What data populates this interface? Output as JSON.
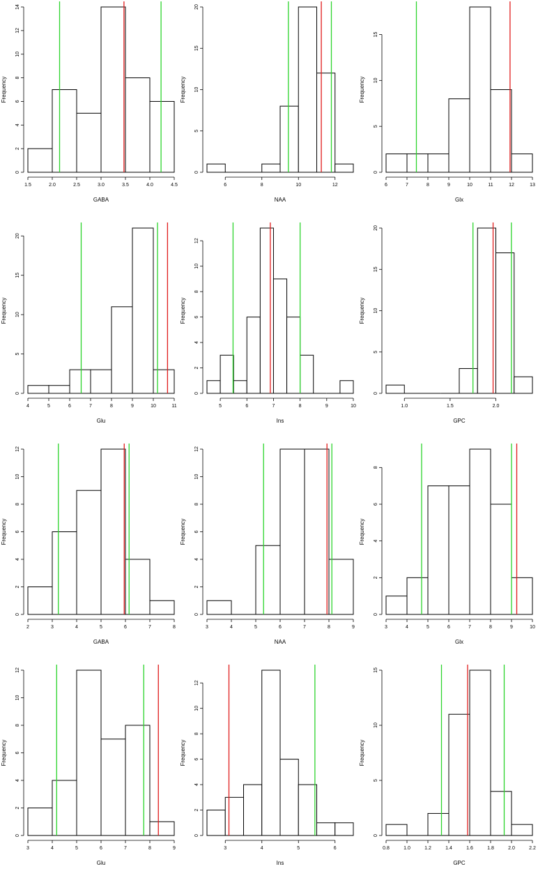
{
  "chart_data": [
    {
      "type": "bar",
      "xlabel": "GABA",
      "ylabel": "Frequency",
      "bins": [
        1.5,
        2.0,
        2.5,
        3.0,
        3.5,
        4.0,
        4.5
      ],
      "counts": [
        2,
        7,
        5,
        14,
        8,
        6
      ],
      "xticks": [
        1.5,
        2.0,
        2.5,
        3.0,
        3.5,
        4.0,
        4.5
      ],
      "xtick_labels": [
        "1.5",
        "2.0",
        "2.5",
        "3.0",
        "3.5",
        "4.0",
        "4.5"
      ],
      "yticks": [
        0,
        2,
        4,
        6,
        8,
        10,
        12,
        14
      ],
      "ylim": [
        0,
        14
      ],
      "red_lines": [
        3.47
      ],
      "green_lines": [
        2.15,
        4.23
      ]
    },
    {
      "type": "bar",
      "xlabel": "NAA",
      "ylabel": "Frequency",
      "bins": [
        5,
        6,
        7,
        8,
        9,
        10,
        11,
        12,
        13
      ],
      "counts": [
        1,
        0,
        0,
        1,
        8,
        20,
        12,
        1
      ],
      "xticks": [
        6,
        8,
        10,
        12
      ],
      "xtick_labels": [
        "6",
        "8",
        "10",
        "12"
      ],
      "yticks": [
        0,
        5,
        10,
        15,
        20
      ],
      "ylim": [
        0,
        20
      ],
      "red_lines": [
        11.25
      ],
      "green_lines": [
        9.45,
        11.8
      ]
    },
    {
      "type": "bar",
      "xlabel": "Glx",
      "ylabel": "Frequency",
      "bins": [
        6,
        7,
        8,
        9,
        10,
        11,
        12,
        13
      ],
      "counts": [
        2,
        2,
        2,
        8,
        18,
        9,
        2
      ],
      "xticks": [
        6,
        7,
        8,
        9,
        10,
        11,
        12,
        13
      ],
      "xtick_labels": [
        "6",
        "7",
        "8",
        "9",
        "10",
        "11",
        "12",
        "13"
      ],
      "yticks": [
        0,
        5,
        10,
        15
      ],
      "ylim": [
        0,
        18
      ],
      "red_lines": [
        11.93
      ],
      "green_lines": [
        7.45
      ]
    },
    {
      "type": "bar",
      "xlabel": "Glu",
      "ylabel": "Frequency",
      "bins": [
        4,
        5,
        6,
        7,
        8,
        9,
        10,
        11
      ],
      "counts": [
        1,
        1,
        3,
        3,
        11,
        21,
        3
      ],
      "xticks": [
        4,
        5,
        6,
        7,
        8,
        9,
        10,
        11
      ],
      "xtick_labels": [
        "4",
        "5",
        "6",
        "7",
        "8",
        "9",
        "10",
        "11"
      ],
      "yticks": [
        0,
        5,
        10,
        15,
        20
      ],
      "ylim": [
        0,
        21
      ],
      "red_lines": [
        10.68
      ],
      "green_lines": [
        6.55,
        10.2
      ]
    },
    {
      "type": "bar",
      "xlabel": "Ins",
      "ylabel": "Frequency",
      "bins": [
        4.5,
        5.0,
        5.5,
        6.0,
        6.5,
        7.0,
        7.5,
        8.0,
        8.5,
        9.0,
        9.5,
        10.0
      ],
      "counts": [
        1,
        3,
        1,
        6,
        13,
        9,
        6,
        3,
        0,
        0,
        1
      ],
      "xticks": [
        5,
        6,
        7,
        8,
        9,
        10
      ],
      "xtick_labels": [
        "5",
        "6",
        "7",
        "8",
        "9",
        "10"
      ],
      "yticks": [
        0,
        2,
        4,
        6,
        8,
        10,
        12
      ],
      "ylim": [
        0,
        13
      ],
      "red_lines": [
        6.88
      ],
      "green_lines": [
        5.48,
        8.0
      ]
    },
    {
      "type": "bar",
      "xlabel": "GPC",
      "ylabel": "Frequency",
      "bins": [
        0.8,
        1.0,
        1.2,
        1.4,
        1.6,
        1.8,
        2.0,
        2.2,
        2.4
      ],
      "counts": [
        1,
        0,
        0,
        0,
        3,
        20,
        17,
        2
      ],
      "xticks": [
        1.0,
        1.5,
        2.0
      ],
      "xtick_labels": [
        "1.0",
        "1.5",
        "2.0"
      ],
      "yticks": [
        0,
        5,
        10,
        15,
        20
      ],
      "ylim": [
        0,
        20
      ],
      "red_lines": [
        1.97
      ],
      "green_lines": [
        1.75,
        2.17
      ]
    },
    {
      "type": "bar",
      "xlabel": "GABA",
      "ylabel": "Frequency",
      "bins": [
        2,
        3,
        4,
        5,
        6,
        7,
        8
      ],
      "counts": [
        2,
        6,
        9,
        12,
        4,
        1
      ],
      "xticks": [
        2,
        3,
        4,
        5,
        6,
        7,
        8
      ],
      "xtick_labels": [
        "2",
        "3",
        "4",
        "5",
        "6",
        "7",
        "8"
      ],
      "yticks": [
        0,
        2,
        4,
        6,
        8,
        10,
        12
      ],
      "ylim": [
        0,
        12
      ],
      "red_lines": [
        5.95
      ],
      "green_lines": [
        3.25,
        6.15
      ]
    },
    {
      "type": "bar",
      "xlabel": "NAA",
      "ylabel": "Frequency",
      "bins": [
        3,
        4,
        5,
        6,
        7,
        8,
        9
      ],
      "counts": [
        1,
        0,
        5,
        12,
        12,
        4
      ],
      "xticks": [
        3,
        4,
        5,
        6,
        7,
        8,
        9
      ],
      "xtick_labels": [
        "3",
        "4",
        "5",
        "6",
        "7",
        "8",
        "9"
      ],
      "yticks": [
        0,
        2,
        4,
        6,
        8,
        10,
        12
      ],
      "ylim": [
        0,
        12
      ],
      "red_lines": [
        7.92
      ],
      "green_lines": [
        5.32,
        8.12
      ]
    },
    {
      "type": "bar",
      "xlabel": "Glx",
      "ylabel": "Frequency",
      "bins": [
        3,
        4,
        5,
        6,
        7,
        8,
        9,
        10
      ],
      "counts": [
        1,
        2,
        7,
        7,
        9,
        6,
        2
      ],
      "xticks": [
        3,
        4,
        5,
        6,
        7,
        8,
        9,
        10
      ],
      "xtick_labels": [
        "3",
        "4",
        "5",
        "6",
        "7",
        "8",
        "9",
        "10"
      ],
      "yticks": [
        0,
        2,
        4,
        6,
        8
      ],
      "ylim": [
        0,
        9
      ],
      "red_lines": [
        9.25
      ],
      "green_lines": [
        4.7,
        9.0
      ]
    },
    {
      "type": "bar",
      "xlabel": "Glu",
      "ylabel": "Frequency",
      "bins": [
        3,
        4,
        5,
        6,
        7,
        8,
        9
      ],
      "counts": [
        2,
        4,
        12,
        7,
        8,
        1
      ],
      "xticks": [
        3,
        4,
        5,
        6,
        7,
        8,
        9
      ],
      "xtick_labels": [
        "3",
        "4",
        "5",
        "6",
        "7",
        "8",
        "9"
      ],
      "yticks": [
        0,
        2,
        4,
        6,
        8,
        10,
        12
      ],
      "ylim": [
        0,
        12
      ],
      "red_lines": [
        8.35
      ],
      "green_lines": [
        4.18,
        7.75
      ]
    },
    {
      "type": "bar",
      "xlabel": "Ins",
      "ylabel": "Frequency",
      "bins": [
        2.5,
        3.0,
        3.5,
        4.0,
        4.5,
        5.0,
        5.5,
        6.0,
        6.5
      ],
      "counts": [
        2,
        3,
        4,
        13,
        6,
        4,
        1,
        1
      ],
      "xticks": [
        3,
        4,
        5,
        6
      ],
      "xtick_labels": [
        "3",
        "4",
        "5",
        "6"
      ],
      "yticks": [
        0,
        2,
        4,
        6,
        8,
        10,
        12
      ],
      "ylim": [
        0,
        13
      ],
      "red_lines": [
        3.1
      ],
      "green_lines": [
        5.45
      ]
    },
    {
      "type": "bar",
      "xlabel": "GPC",
      "ylabel": "Frequency",
      "bins": [
        0.8,
        1.0,
        1.2,
        1.4,
        1.6,
        1.8,
        2.0,
        2.2
      ],
      "counts": [
        1,
        0,
        2,
        11,
        15,
        4,
        1
      ],
      "xticks": [
        0.8,
        1.0,
        1.2,
        1.4,
        1.6,
        1.8,
        2.0,
        2.2
      ],
      "xtick_labels": [
        "0.8",
        "1.0",
        "1.2",
        "1.4",
        "1.6",
        "1.8",
        "2.0",
        "2.2"
      ],
      "yticks": [
        0,
        5,
        10,
        15
      ],
      "ylim": [
        0,
        15
      ],
      "red_lines": [
        1.58
      ],
      "green_lines": [
        1.33,
        1.93
      ]
    }
  ],
  "colors": {
    "bar_fill": "#ffffff",
    "bar_stroke": "#000000",
    "red_line": "#e01b1b",
    "green_line": "#2bd42b"
  }
}
